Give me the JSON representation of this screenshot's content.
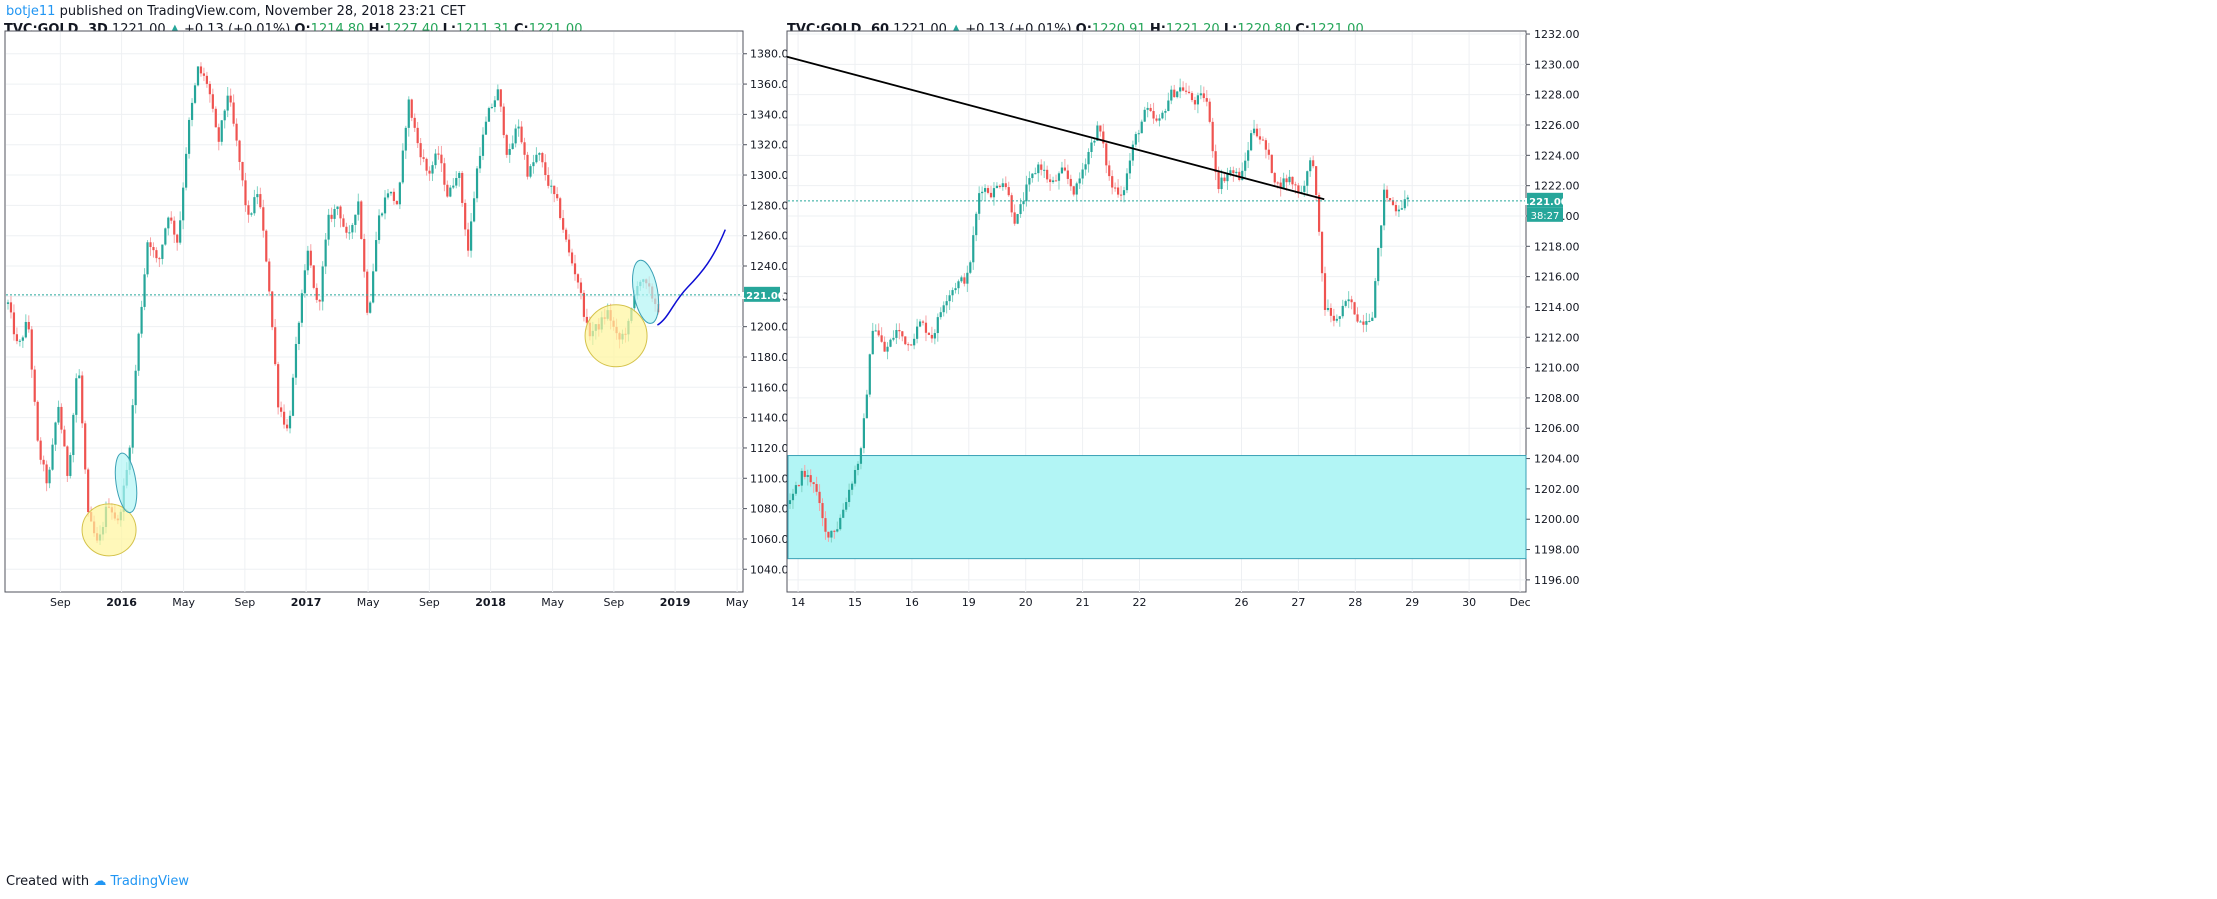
{
  "header": {
    "user": "botje11",
    "published": "published on TradingView.com, November 28, 2018 23:21 CET"
  },
  "footer": {
    "created_with": "Created with",
    "brand": "TradingView"
  },
  "colors": {
    "up": "#26a69a",
    "down": "#ef5350",
    "wick_up": "#7fd3c4",
    "wick_down": "#f7a3a6",
    "last_price": "#26a69a",
    "grid": "#eef0f3",
    "yellow": "#fff59d",
    "cyan": "#b2f5f5",
    "blue_curve": "#0d0dd4"
  },
  "chart_data": [
    {
      "type": "candlestick",
      "symbol": "TVC:GOLD",
      "interval": "3D",
      "info": {
        "last": "1221.00",
        "change": "+0.13 (+0.01%)",
        "O": "1214.80",
        "H": "1227.40",
        "L": "1211.31",
        "C": "1221.00"
      },
      "ylim": [
        1025,
        1395
      ],
      "y_ticks": [
        1040,
        1060,
        1080,
        1100,
        1120,
        1140,
        1160,
        1180,
        1200,
        1220,
        1240,
        1260,
        1280,
        1300,
        1320,
        1340,
        1360,
        1380
      ],
      "x_ticks": [
        "Sep",
        "2016",
        "May",
        "Sep",
        "2017",
        "May",
        "Sep",
        "2018",
        "May",
        "Sep",
        "2019",
        "May"
      ],
      "bold_x_ticks": [
        "2016",
        "2017",
        "2018",
        "2019"
      ],
      "last_price": 1221.0,
      "last_price_label": "1221.00",
      "path": [
        1215,
        1185,
        1205,
        1120,
        1095,
        1150,
        1100,
        1180,
        1075,
        1055,
        1085,
        1070,
        1110,
        1190,
        1260,
        1240,
        1275,
        1255,
        1330,
        1370,
        1360,
        1320,
        1355,
        1315,
        1270,
        1290,
        1235,
        1150,
        1130,
        1200,
        1250,
        1210,
        1270,
        1280,
        1255,
        1285,
        1205,
        1270,
        1290,
        1280,
        1350,
        1320,
        1300,
        1315,
        1285,
        1305,
        1250,
        1310,
        1340,
        1355,
        1310,
        1335,
        1300,
        1315,
        1295,
        1280,
        1250,
        1230,
        1195,
        1200,
        1210,
        1190,
        1200,
        1232,
        1225,
        1212
      ]
    },
    {
      "type": "candlestick",
      "symbol": "TVC:GOLD",
      "interval": "60",
      "info": {
        "last": "1221.00",
        "change": "+0.13 (+0.01%)",
        "O": "1220.91",
        "H": "1221.20",
        "L": "1220.80",
        "C": "1221.00"
      },
      "ylim": [
        1195.2,
        1232.2
      ],
      "y_ticks": [
        1196,
        1198,
        1200,
        1202,
        1204,
        1206,
        1208,
        1210,
        1212,
        1214,
        1216,
        1218,
        1220,
        1222,
        1224,
        1226,
        1228,
        1230,
        1232
      ],
      "x_ticks": [
        "14",
        "15",
        "16",
        "19",
        "20",
        "21",
        "22",
        "26",
        "27",
        "28",
        "29",
        "30",
        "Dec"
      ],
      "last_price": 1221.0,
      "last_price_label": "1221.00",
      "countdown_label": "38:27",
      "zone": [
        1197.4,
        1204.2
      ],
      "path": [
        1201,
        1203,
        1202.5,
        1199,
        1199.5,
        1202,
        1204.5,
        1213,
        1211,
        1212.5,
        1211.5,
        1213,
        1212,
        1214.5,
        1215.5,
        1216,
        1222,
        1221.5,
        1222.5,
        1219.5,
        1222,
        1223.5,
        1222,
        1223,
        1221.5,
        1224,
        1226,
        1222,
        1221.5,
        1225,
        1227,
        1226,
        1228,
        1228.5,
        1227.5,
        1228,
        1222,
        1223,
        1222.5,
        1226,
        1224.5,
        1222,
        1222.5,
        1221.5,
        1224,
        1214,
        1213,
        1214.5,
        1213,
        1213.5,
        1221.5,
        1220.5,
        1221
      ]
    }
  ]
}
